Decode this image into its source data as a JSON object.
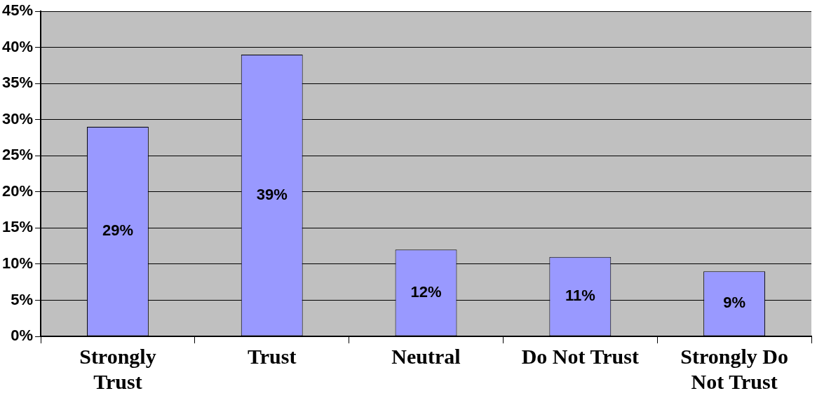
{
  "chart_data": {
    "type": "bar",
    "categories": [
      "Strongly Trust",
      "Trust",
      "Neutral",
      "Do Not Trust",
      "Strongly Do Not Trust"
    ],
    "values": [
      29,
      39,
      12,
      11,
      9
    ],
    "value_labels": [
      "29%",
      "39%",
      "12%",
      "11%",
      "9%"
    ],
    "color": "#9999ff",
    "ylim": [
      0,
      45
    ],
    "yticks": [
      {
        "value": 0,
        "label": "0%"
      },
      {
        "value": 5,
        "label": "5%"
      },
      {
        "value": 10,
        "label": "10%"
      },
      {
        "value": 15,
        "label": "15%"
      },
      {
        "value": 20,
        "label": "20%"
      },
      {
        "value": 25,
        "label": "25%"
      },
      {
        "value": 30,
        "label": "30%"
      },
      {
        "value": 35,
        "label": "35%"
      },
      {
        "value": 40,
        "label": "40%"
      },
      {
        "value": 45,
        "label": "45%"
      }
    ],
    "grid": "y",
    "legend": false
  }
}
